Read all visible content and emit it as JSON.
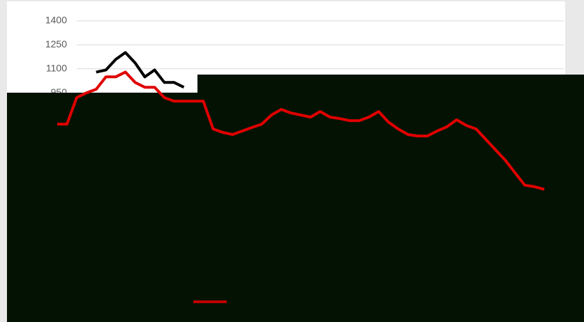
{
  "chart_data": {
    "type": "line",
    "ylim": [
      0,
      1400
    ],
    "yticks": [
      950,
      1100,
      1250,
      1400
    ],
    "grid": true,
    "series": [
      {
        "color": "#000000",
        "values": [
          null,
          null,
          null,
          null,
          1080,
          1093,
          1159,
          1202,
          1137,
          1050,
          1093,
          1015,
          1015,
          985,
          null,
          null,
          null,
          null,
          null,
          null,
          null,
          null,
          null,
          null,
          null,
          null,
          null,
          null,
          null,
          null,
          null,
          null,
          null,
          null,
          null,
          null,
          null,
          null,
          null,
          null,
          null,
          null,
          null,
          null,
          null,
          null,
          null,
          null,
          null,
          null,
          null
        ]
      },
      {
        "color": "#e00000",
        "values": [
          754,
          754,
          920,
          950,
          972,
          1050,
          1050,
          1080,
          1015,
          985,
          985,
          920,
          898,
          898,
          898,
          898,
          724,
          702,
          689,
          711,
          733,
          754,
          811,
          846,
          824,
          811,
          798,
          833,
          798,
          789,
          776,
          776,
          798,
          833,
          767,
          724,
          689,
          680,
          680,
          711,
          737,
          781,
          746,
          724,
          659,
          593,
          528,
          450,
          372,
          363,
          346
        ]
      }
    ]
  }
}
